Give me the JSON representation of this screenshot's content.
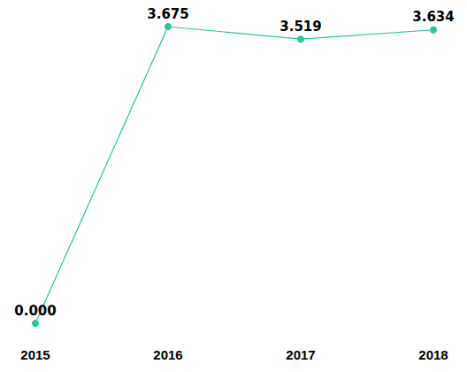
{
  "chart_data": {
    "type": "line",
    "categories": [
      "2015",
      "2016",
      "2017",
      "2018"
    ],
    "values": [
      0,
      3.675,
      3.519,
      3.634
    ],
    "value_labels": [
      "0.000",
      "3.675",
      "3.519",
      "3.634"
    ],
    "color": "#20c997",
    "marker": "circle",
    "ylim": [
      0,
      3.675
    ],
    "grid": false,
    "data_labels": true,
    "tick_labels": "x"
  }
}
